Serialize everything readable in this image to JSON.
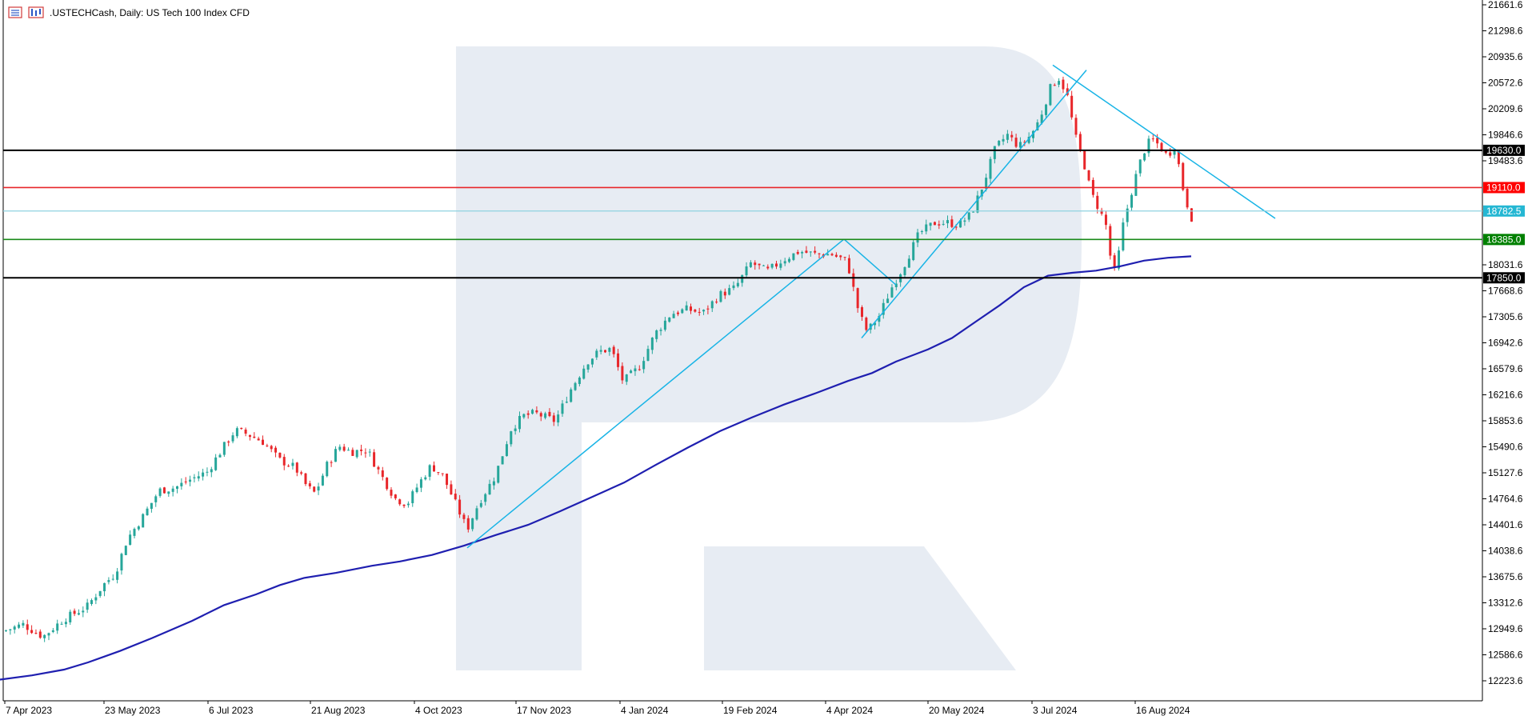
{
  "header": {
    "symbol_text": ".USTECHCash, Daily:  US Tech 100 Index CFD",
    "icons": [
      "indicator-list-icon",
      "chart-bars-icon"
    ]
  },
  "chart_data": {
    "type": "candlestick",
    "title": ".USTECHCash, Daily:  US Tech 100 Index CFD",
    "ylim": [
      12100,
      21661.6
    ],
    "y_ticks": [
      21661.6,
      21298.6,
      20935.6,
      20572.6,
      20209.6,
      19846.6,
      19483.6,
      18031.6,
      17668.6,
      17305.6,
      16942.6,
      16579.6,
      16216.6,
      15853.6,
      15490.6,
      15127.6,
      14764.6,
      14401.6,
      14038.6,
      13675.6,
      13312.6,
      12949.6,
      12586.6,
      12223.6
    ],
    "x_ticks": [
      "7 Apr 2023",
      "23 May 2023",
      "6 Jul 2023",
      "21 Aug 2023",
      "4 Oct 2023",
      "17 Nov 2023",
      "4 Jan 2024",
      "19 Feb 2024",
      "4 Apr 2024",
      "20 May 2024",
      "3 Jul 2024",
      "16 Aug 2024"
    ],
    "levels": [
      {
        "label": "19630.0",
        "value": 19630.0,
        "color": "#000000",
        "bg": "#000000",
        "text_color": "#ffffff",
        "width": 2
      },
      {
        "label": "19110.0",
        "value": 19110.0,
        "color": "#e8262a",
        "bg": "#ff0000",
        "text_color": "#ffffff",
        "width": 1.6
      },
      {
        "label": "18782.5",
        "value": 18782.5,
        "color": "#8fd3e0",
        "bg": "#25b7d3",
        "text_color": "#ffffff",
        "width": 1.2
      },
      {
        "label": "18385.0",
        "value": 18385.0,
        "color": "#1a8a1a",
        "bg": "#008000",
        "text_color": "#ffffff",
        "width": 1.6
      },
      {
        "label": "17850.0",
        "value": 17850.0,
        "color": "#000000",
        "bg": "#000000",
        "text_color": "#ffffff",
        "width": 2
      }
    ],
    "ma_200": [
      [
        0,
        12240
      ],
      [
        40,
        12300
      ],
      [
        80,
        12380
      ],
      [
        110,
        12480
      ],
      [
        150,
        12640
      ],
      [
        190,
        12820
      ],
      [
        240,
        13060
      ],
      [
        280,
        13280
      ],
      [
        320,
        13430
      ],
      [
        350,
        13560
      ],
      [
        380,
        13660
      ],
      [
        420,
        13730
      ],
      [
        465,
        13830
      ],
      [
        500,
        13890
      ],
      [
        540,
        13980
      ],
      [
        580,
        14110
      ],
      [
        620,
        14260
      ],
      [
        660,
        14400
      ],
      [
        700,
        14590
      ],
      [
        740,
        14790
      ],
      [
        780,
        14990
      ],
      [
        820,
        15240
      ],
      [
        860,
        15480
      ],
      [
        900,
        15710
      ],
      [
        940,
        15900
      ],
      [
        980,
        16080
      ],
      [
        1020,
        16240
      ],
      [
        1060,
        16410
      ],
      [
        1090,
        16520
      ],
      [
        1120,
        16680
      ],
      [
        1160,
        16850
      ],
      [
        1190,
        17010
      ],
      [
        1220,
        17240
      ],
      [
        1250,
        17470
      ],
      [
        1280,
        17720
      ],
      [
        1310,
        17880
      ],
      [
        1340,
        17920
      ],
      [
        1370,
        17950
      ],
      [
        1400,
        18010
      ],
      [
        1430,
        18090
      ],
      [
        1460,
        18130
      ],
      [
        1489,
        18150
      ]
    ],
    "trendlines": [
      {
        "name": "uptrend-1",
        "points": [
          [
            584,
            14080
          ],
          [
            1055,
            18390
          ]
        ]
      },
      {
        "name": "pullback-1",
        "points": [
          [
            1055,
            18390
          ],
          [
            1120,
            17750
          ]
        ]
      },
      {
        "name": "uptrend-2",
        "points": [
          [
            1077,
            17010
          ],
          [
            1358,
            20750
          ]
        ]
      },
      {
        "name": "downtrend",
        "points": [
          [
            1316,
            20820
          ],
          [
            1594,
            18680
          ]
        ]
      }
    ],
    "price_path": [
      [
        6,
        12920
      ],
      [
        30,
        13010
      ],
      [
        55,
        12840
      ],
      [
        80,
        13080
      ],
      [
        110,
        13260
      ],
      [
        130,
        13560
      ],
      [
        145,
        13720
      ],
      [
        160,
        14200
      ],
      [
        180,
        14520
      ],
      [
        200,
        14880
      ],
      [
        220,
        14920
      ],
      [
        240,
        15040
      ],
      [
        260,
        15140
      ],
      [
        280,
        15480
      ],
      [
        295,
        15720
      ],
      [
        310,
        15670
      ],
      [
        330,
        15560
      ],
      [
        350,
        15310
      ],
      [
        370,
        15200
      ],
      [
        385,
        14930
      ],
      [
        395,
        14840
      ],
      [
        410,
        15240
      ],
      [
        425,
        15500
      ],
      [
        440,
        15420
      ],
      [
        460,
        15450
      ],
      [
        475,
        15140
      ],
      [
        495,
        14770
      ],
      [
        510,
        14690
      ],
      [
        525,
        14980
      ],
      [
        540,
        15230
      ],
      [
        555,
        15080
      ],
      [
        570,
        14710
      ],
      [
        585,
        14340
      ],
      [
        600,
        14720
      ],
      [
        620,
        15080
      ],
      [
        640,
        15740
      ],
      [
        655,
        15920
      ],
      [
        670,
        15960
      ],
      [
        695,
        15850
      ],
      [
        715,
        16300
      ],
      [
        735,
        16680
      ],
      [
        750,
        16820
      ],
      [
        765,
        16860
      ],
      [
        780,
        16400
      ],
      [
        800,
        16600
      ],
      [
        820,
        17070
      ],
      [
        840,
        17350
      ],
      [
        860,
        17410
      ],
      [
        880,
        17360
      ],
      [
        900,
        17610
      ],
      [
        920,
        17710
      ],
      [
        940,
        18060
      ],
      [
        960,
        17940
      ],
      [
        980,
        18100
      ],
      [
        1000,
        18220
      ],
      [
        1020,
        18180
      ],
      [
        1040,
        18180
      ],
      [
        1060,
        18080
      ],
      [
        1075,
        17350
      ],
      [
        1085,
        17100
      ],
      [
        1100,
        17320
      ],
      [
        1115,
        17700
      ],
      [
        1130,
        18000
      ],
      [
        1150,
        18470
      ],
      [
        1170,
        18620
      ],
      [
        1185,
        18620
      ],
      [
        1200,
        18590
      ],
      [
        1215,
        18740
      ],
      [
        1230,
        19150
      ],
      [
        1245,
        19650
      ],
      [
        1260,
        19850
      ],
      [
        1275,
        19680
      ],
      [
        1290,
        19850
      ],
      [
        1300,
        20050
      ],
      [
        1315,
        20530
      ],
      [
        1325,
        20640
      ],
      [
        1335,
        20400
      ],
      [
        1345,
        19830
      ],
      [
        1355,
        19500
      ],
      [
        1365,
        19030
      ],
      [
        1375,
        18810
      ],
      [
        1385,
        18540
      ],
      [
        1392,
        17860
      ],
      [
        1398,
        18080
      ],
      [
        1405,
        18590
      ],
      [
        1418,
        19160
      ],
      [
        1430,
        19600
      ],
      [
        1440,
        19790
      ],
      [
        1450,
        19700
      ],
      [
        1460,
        19550
      ],
      [
        1470,
        19700
      ],
      [
        1480,
        19090
      ],
      [
        1487,
        18800
      ],
      [
        1495,
        18560
      ],
      [
        1490,
        18570
      ],
      [
        1500,
        18780
      ],
      [
        1489,
        18783
      ]
    ]
  }
}
